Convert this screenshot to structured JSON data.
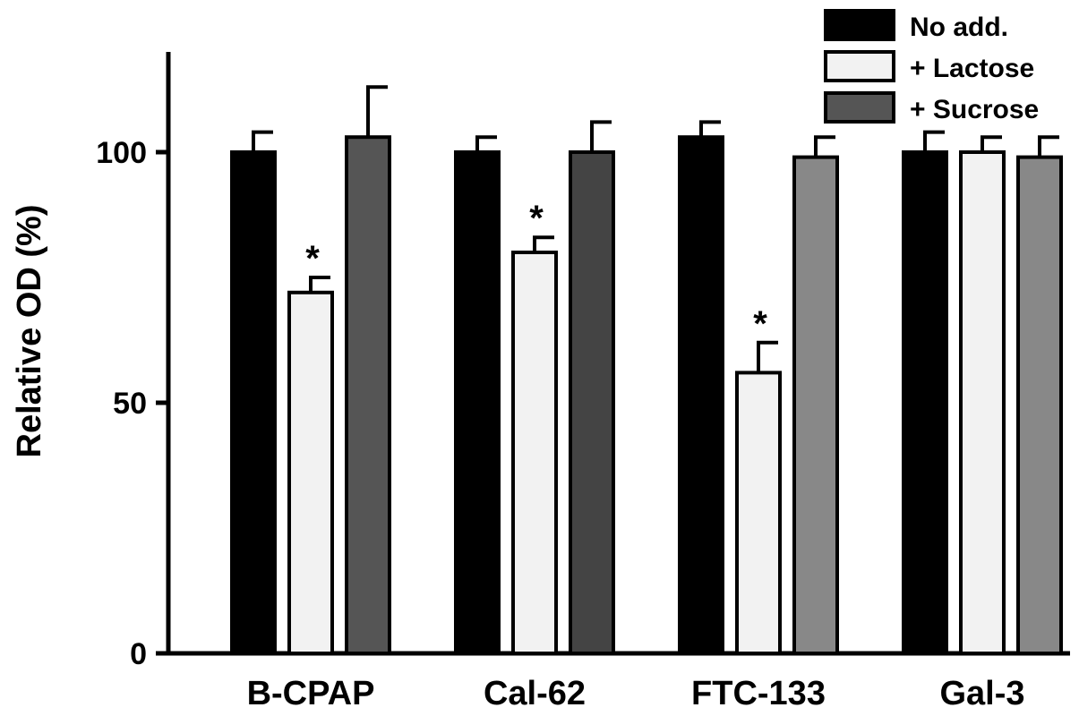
{
  "chart_data": {
    "type": "bar",
    "ylabel": "Relative OD (%)",
    "ylim": [
      0,
      120
    ],
    "yticks": [
      0,
      50,
      100
    ],
    "yticks_labels": [
      "0",
      "50",
      "100"
    ],
    "categories": [
      "B-CPAP",
      "Cal-62",
      "FTC-133",
      "Gal-3"
    ],
    "legend_position": "top-right",
    "grid": false,
    "series": [
      {
        "name": "No add.",
        "color": "#000000",
        "values": [
          100,
          100,
          103,
          100
        ],
        "errors": [
          4,
          3,
          3,
          4
        ]
      },
      {
        "name": "+ Lactose",
        "color": "#f2f2f2",
        "values": [
          72,
          80,
          56,
          100
        ],
        "errors": [
          3,
          3,
          6,
          3
        ]
      },
      {
        "name": "+ Sucrose",
        "color": "#555555",
        "values": [
          103,
          100,
          99,
          99
        ],
        "errors": [
          10,
          6,
          4,
          4
        ]
      }
    ],
    "series_colors_per_category": [
      [
        "#000000",
        "#f2f2f2",
        "#555555"
      ],
      [
        "#000000",
        "#f2f2f2",
        "#444444"
      ],
      [
        "#000000",
        "#f2f2f2",
        "#888888"
      ],
      [
        "#000000",
        "#f2f2f2",
        "#888888"
      ]
    ],
    "annotations": [
      {
        "category": "B-CPAP",
        "series": "+ Lactose",
        "text": "*"
      },
      {
        "category": "Cal-62",
        "series": "+ Lactose",
        "text": "*"
      },
      {
        "category": "FTC-133",
        "series": "+ Lactose",
        "text": "*"
      }
    ]
  }
}
